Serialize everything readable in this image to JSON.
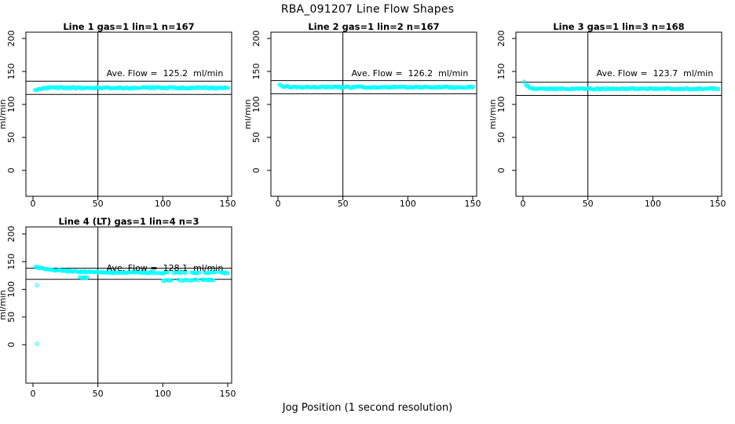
{
  "chart_data": {
    "type": "scatter",
    "title": "RBA_091207  Line Flow Shapes",
    "xlabel": "Jog Position (1 second resolution)",
    "ylabel": "ml/min",
    "x_ticks": [
      0,
      50,
      100,
      150
    ],
    "y_ticks": [
      0,
      50,
      100,
      150,
      200
    ],
    "xlim": [
      0,
      153
    ],
    "ylim": [
      0,
      200
    ],
    "grid": false,
    "point_color": "#00FFFF",
    "line_color": "#000000",
    "vline_x": 50,
    "hline_offset_ml_min": 10,
    "panels": [
      {
        "title": "Line 1 gas=1 lin=1 n=167",
        "n": 167,
        "ave_flow": 125.2,
        "ave_flow_label": "Ave. Flow =  125.2  ml/min",
        "hlines": [
          135.2,
          115.2
        ],
        "segments": [
          {
            "x_start": 1.5,
            "x_end": 150.5,
            "n": 167,
            "y_start": 120.8,
            "y_settle": 125.1,
            "decay": 2.2,
            "jitter": 1.4
          }
        ],
        "extra_points": []
      },
      {
        "title": "Line 2 gas=1 lin=2 n=167",
        "n": 167,
        "ave_flow": 126.2,
        "ave_flow_label": "Ave. Flow =  126.2  ml/min",
        "hlines": [
          136.2,
          116.2
        ],
        "segments": [
          {
            "x_start": 1.0,
            "x_end": 150.5,
            "n": 167,
            "y_start": 131.0,
            "y_settle": 126.1,
            "decay": 2.6,
            "jitter": 1.2
          }
        ],
        "extra_points": []
      },
      {
        "title": "Line 3 gas=1 lin=3 n=168",
        "n": 168,
        "ave_flow": 123.7,
        "ave_flow_label": "Ave. Flow =  123.7  ml/min",
        "hlines": [
          133.7,
          113.7
        ],
        "segments": [
          {
            "x_start": 1.0,
            "x_end": 150.5,
            "n": 168,
            "y_start": 134.5,
            "y_settle": 123.7,
            "decay": 2.6,
            "jitter": 1.1
          }
        ],
        "extra_points": []
      },
      {
        "title": "Line 4 (LT) gas=1 lin=4 n=3",
        "n": 3,
        "ave_flow": 128.1,
        "ave_flow_label": "Ave. Flow =  128.1  ml/min",
        "hlines": [
          138.1,
          118.1
        ],
        "segments": [
          {
            "x_start": 2,
            "x_end": 60,
            "n": 72,
            "y_start": 140.5,
            "y_settle": 130.5,
            "decay": 18,
            "jitter": 1.2
          },
          {
            "x_start": 60,
            "x_end": 95,
            "n": 42,
            "y_start": 130.5,
            "y_settle": 130.0,
            "decay": 60,
            "jitter": 1.5
          },
          {
            "x_start": 97,
            "x_end": 104,
            "n": 9,
            "y_start": 130.0,
            "y_settle": 130.0,
            "decay": 60,
            "jitter": 1.5
          },
          {
            "x_start": 108,
            "x_end": 118,
            "n": 11,
            "y_start": 130.5,
            "y_settle": 130.5,
            "decay": 60,
            "jitter": 1.3
          },
          {
            "x_start": 122,
            "x_end": 128,
            "n": 8,
            "y_start": 130.0,
            "y_settle": 130.0,
            "decay": 60,
            "jitter": 1.2
          },
          {
            "x_start": 132,
            "x_end": 141,
            "n": 10,
            "y_start": 130.5,
            "y_settle": 130.5,
            "decay": 60,
            "jitter": 1.4
          },
          {
            "x_start": 144,
            "x_end": 150,
            "n": 8,
            "y_start": 130.0,
            "y_settle": 130.0,
            "decay": 60,
            "jitter": 1.3
          },
          {
            "x_start": 36,
            "x_end": 42,
            "n": 8,
            "y_start": 121.0,
            "y_settle": 121.0,
            "decay": 60,
            "jitter": 1.2
          },
          {
            "x_start": 100,
            "x_end": 107,
            "n": 8,
            "y_start": 116.0,
            "y_settle": 116.0,
            "decay": 60,
            "jitter": 1.0
          },
          {
            "x_start": 112,
            "x_end": 127,
            "n": 14,
            "y_start": 116.5,
            "y_settle": 116.5,
            "decay": 60,
            "jitter": 1.2
          },
          {
            "x_start": 130,
            "x_end": 139,
            "n": 10,
            "y_start": 117.0,
            "y_settle": 117.0,
            "decay": 60,
            "jitter": 1.0
          }
        ],
        "extra_points": [
          [
            3,
            107.5
          ],
          [
            3,
            1.5
          ]
        ]
      }
    ]
  }
}
